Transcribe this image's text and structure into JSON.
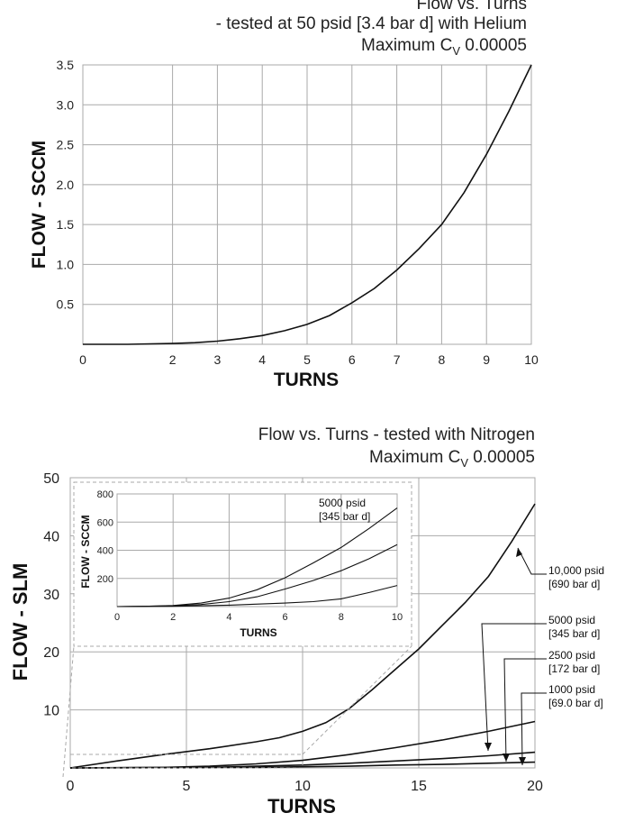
{
  "chart_data": [
    {
      "type": "line",
      "title": "Flow vs. Turns",
      "subtitle": "- tested at 50 psid [3.4 bar d] with Helium",
      "max_cv_prefix": "Maximum C",
      "max_cv_sub": "V",
      "max_cv_value": " 0.00005",
      "xlabel": "TURNS",
      "ylabel": "FLOW - SCCM",
      "xlim": [
        0,
        10
      ],
      "ylim": [
        0,
        3.5
      ],
      "x_ticks": [
        "0",
        "2",
        "3",
        "4",
        "5",
        "6",
        "7",
        "8",
        "9",
        "10"
      ],
      "y_ticks": [
        "0.5",
        "1.0",
        "1.5",
        "2.0",
        "2.5",
        "3.0",
        "3.5"
      ],
      "grid": true,
      "series": [
        {
          "x": [
            0,
            1,
            2,
            2.5,
            3,
            3.5,
            4,
            4.5,
            5,
            5.5,
            6,
            6.5,
            7,
            7.5,
            8,
            8.5,
            9,
            9.5,
            10
          ],
          "y": [
            0,
            0,
            0.01,
            0.02,
            0.04,
            0.07,
            0.11,
            0.17,
            0.25,
            0.36,
            0.52,
            0.7,
            0.93,
            1.2,
            1.5,
            1.9,
            2.38,
            2.92,
            3.5
          ]
        }
      ]
    },
    {
      "type": "line",
      "title": "Flow vs. Turns - tested with Nitrogen",
      "max_cv_prefix": "Maximum C",
      "max_cv_sub": "V",
      "max_cv_value": " 0.00005",
      "xlabel": "TURNS",
      "ylabel": "FLOW - SLM",
      "xlim": [
        0,
        20
      ],
      "ylim": [
        0,
        50
      ],
      "x_ticks": [
        "0",
        "5",
        "10",
        "15",
        "20"
      ],
      "y_ticks": [
        "10",
        "20",
        "30",
        "40",
        "50"
      ],
      "grid": true,
      "series": [
        {
          "name": "10,000 psid [690 bar d]",
          "x": [
            0,
            2,
            4,
            6,
            8,
            9,
            10,
            11,
            12,
            13,
            14,
            15,
            16,
            17,
            18,
            19,
            20
          ],
          "y": [
            0,
            1.2,
            2.3,
            3.3,
            4.5,
            5.2,
            6.3,
            7.8,
            10.2,
            13.5,
            17.0,
            20.5,
            24.5,
            28.5,
            33.0,
            39.0,
            45.5
          ]
        },
        {
          "name": "5000 psid [345 bar d]",
          "x": [
            0,
            4,
            6,
            8,
            10,
            12,
            14,
            16,
            18,
            20
          ],
          "y": [
            0,
            0.1,
            0.3,
            0.7,
            1.3,
            2.3,
            3.5,
            4.8,
            6.3,
            8.0
          ]
        },
        {
          "name": "2500 psid [172 bar d]",
          "x": [
            0,
            6,
            8,
            10,
            12,
            14,
            16,
            18,
            20
          ],
          "y": [
            0,
            0.1,
            0.3,
            0.5,
            0.8,
            1.2,
            1.6,
            2.1,
            2.7
          ]
        },
        {
          "name": "1000 psid [69.0 bar d]",
          "x": [
            0,
            8,
            10,
            12,
            14,
            16,
            18,
            20
          ],
          "y": [
            0,
            0.1,
            0.2,
            0.3,
            0.5,
            0.6,
            0.8,
            1.0
          ]
        }
      ],
      "inset": {
        "xlabel": "TURNS",
        "ylabel": "FLOW - SCCM",
        "xlim": [
          0,
          10
        ],
        "ylim": [
          0,
          800
        ],
        "x_ticks": [
          "0",
          "2",
          "4",
          "6",
          "8",
          "10"
        ],
        "y_ticks": [
          "200",
          "400",
          "600",
          "800"
        ],
        "annotation": [
          "5000 psid",
          "[345 bar d]"
        ],
        "series": [
          {
            "x": [
              0,
              1,
              2,
              3,
              4,
              5,
              6,
              7,
              8,
              9,
              10
            ],
            "y": [
              0,
              2,
              8,
              25,
              60,
              120,
              205,
              310,
              420,
              555,
              700
            ]
          },
          {
            "x": [
              0,
              2,
              3,
              4,
              5,
              6,
              7,
              8,
              9,
              10
            ],
            "y": [
              0,
              5,
              15,
              35,
              70,
              125,
              185,
              255,
              340,
              440
            ]
          },
          {
            "x": [
              0,
              2,
              4,
              6,
              7,
              8,
              9,
              10
            ],
            "y": [
              0,
              2,
              10,
              25,
              35,
              55,
              100,
              150
            ]
          }
        ]
      }
    }
  ]
}
